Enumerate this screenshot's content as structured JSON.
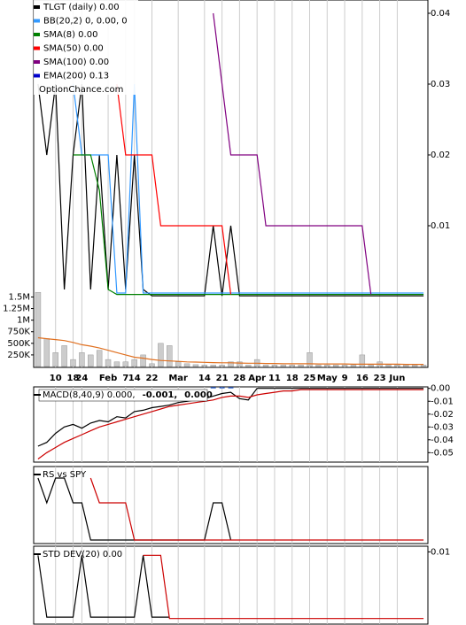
{
  "chart_data": [
    {
      "type": "line",
      "y_axis_side": "right",
      "annotation": "OptionChance.com",
      "ylim": [
        0,
        0.04
      ],
      "yticks": [
        0.01,
        0.02,
        0.03,
        0.04
      ],
      "series": [
        {
          "name": "TLGT (daily) 0.00",
          "color": "#000000",
          "values": [
            0.03,
            0.02,
            0.03,
            0.001,
            0.02,
            0.03,
            0.001,
            0.02,
            0.001,
            0.02,
            0.001,
            0.02,
            0.001,
            0.0001,
            0.0001,
            0.0001,
            0.0001,
            0.0001,
            0.0001,
            0.0001,
            0.01,
            0.0001,
            0.01,
            0.0001,
            0.0001,
            0.0001,
            0.0001,
            0.0001,
            0.0001,
            0.0001,
            0.0001,
            0.0001,
            0.0001,
            0.0001,
            0.0001,
            0.0001,
            0.0001,
            0.0001,
            0.0001,
            0.0001,
            0.0001,
            0.0001,
            0.0001,
            0.0001,
            0.0001
          ]
        },
        {
          "name": "BB(20,2) 0, 0.00, 0",
          "color": "#3399ff",
          "values": [
            null,
            null,
            null,
            null,
            0.03,
            0.02,
            0.02,
            0.02,
            0.02,
            0.0005,
            0.0005,
            0.03,
            0.0005,
            0.0005,
            0.0005,
            0.0005,
            0.0005,
            0.0005,
            0.0005,
            0.0005,
            0.0005,
            0.0005,
            0.0005,
            0.0005,
            0.0005,
            0.0005,
            0.0005,
            0.0005,
            0.0005,
            0.0005,
            0.0005,
            0.0005,
            0.0005,
            0.0005,
            0.0005,
            0.0005,
            0.0005,
            0.0005,
            0.0005,
            0.0005,
            0.0005,
            0.0005,
            0.0005,
            0.0005,
            0.0005
          ]
        },
        {
          "name": "SMA(8) 0.00",
          "color": "#008000",
          "values": [
            null,
            null,
            null,
            null,
            0.02,
            0.02,
            0.02,
            0.015,
            0.001,
            0.0003,
            0.0003,
            0.0003,
            0.0003,
            0.0003,
            0.0003,
            0.0003,
            0.0003,
            0.0003,
            0.0003,
            0.0003,
            0.0003,
            0.0003,
            0.0003,
            0.0003,
            0.0003,
            0.0003,
            0.0003,
            0.0003,
            0.0003,
            0.0003,
            0.0003,
            0.0003,
            0.0003,
            0.0003,
            0.0003,
            0.0003,
            0.0003,
            0.0003,
            0.0003,
            0.0003,
            0.0003,
            0.0003,
            0.0003,
            0.0003,
            0.0003
          ]
        },
        {
          "name": "SMA(50) 0.00",
          "color": "#ff0000",
          "values": [
            null,
            null,
            null,
            null,
            null,
            null,
            null,
            null,
            null,
            0.03,
            0.02,
            0.02,
            0.02,
            0.02,
            0.01,
            0.01,
            0.01,
            0.01,
            0.01,
            0.01,
            0.01,
            0.01,
            0.0003,
            null,
            null,
            null,
            null,
            null,
            null,
            null,
            null,
            null,
            null,
            null,
            null,
            null,
            null,
            null,
            null,
            null,
            null,
            null,
            null,
            null,
            null
          ]
        },
        {
          "name": "SMA(100) 0.00",
          "color": "#800080",
          "values": [
            null,
            null,
            null,
            null,
            null,
            null,
            null,
            null,
            null,
            null,
            null,
            null,
            null,
            null,
            null,
            null,
            null,
            null,
            null,
            null,
            0.04,
            0.03,
            0.02,
            0.02,
            0.02,
            0.02,
            0.01,
            0.01,
            0.01,
            0.01,
            0.01,
            0.01,
            0.01,
            0.01,
            0.01,
            0.01,
            0.01,
            0.01,
            0.0003,
            null,
            null,
            null,
            null,
            null,
            null
          ]
        },
        {
          "name": "EMA(200) 0.13",
          "color": "#0000cc",
          "values": [
            null,
            null,
            null,
            null,
            null,
            null,
            null,
            null,
            null,
            null,
            null,
            null,
            null,
            null,
            null,
            null,
            null,
            null,
            null,
            null,
            null,
            null,
            null,
            null,
            null,
            null,
            null,
            null,
            null,
            null,
            null,
            null,
            null,
            null,
            null,
            null,
            null,
            null,
            null,
            null,
            null,
            null,
            null,
            null,
            null
          ]
        }
      ]
    },
    {
      "type": "bar",
      "y_axis_side": "left",
      "ylim": [
        0,
        1700000
      ],
      "yticks": [
        {
          "value": 250000,
          "label": "250K"
        },
        {
          "value": 500000,
          "label": "500K"
        },
        {
          "value": 750000,
          "label": "750K"
        },
        {
          "value": 1000000,
          "label": "1M"
        },
        {
          "value": 1250000,
          "label": "1.25M"
        },
        {
          "value": 1500000,
          "label": "1.5M"
        }
      ],
      "categories": [
        null,
        null,
        "10",
        null,
        "18",
        "24",
        null,
        null,
        "Feb",
        null,
        "7",
        "14",
        null,
        "22",
        null,
        null,
        "Mar",
        null,
        null,
        "14",
        null,
        "21",
        null,
        "28",
        null,
        "Apr",
        null,
        "11",
        null,
        "18",
        null,
        "25",
        null,
        "May",
        null,
        "9",
        null,
        "16",
        null,
        "23",
        null,
        "Jun",
        null,
        null,
        null
      ],
      "series": [
        {
          "type": "bar",
          "color": "#cccccc",
          "values": [
            1600000,
            600000,
            300000,
            450000,
            150000,
            300000,
            250000,
            350000,
            150000,
            100000,
            100000,
            150000,
            250000,
            60000,
            500000,
            450000,
            100000,
            60000,
            40000,
            30000,
            30000,
            30000,
            100000,
            100000,
            30000,
            150000,
            30000,
            30000,
            30000,
            30000,
            30000,
            300000,
            30000,
            30000,
            30000,
            30000,
            30000,
            250000,
            30000,
            100000,
            30000,
            30000,
            30000,
            30000,
            30000
          ]
        },
        {
          "type": "line",
          "color": "#e07020",
          "values": [
            620000,
            600000,
            580000,
            560000,
            520000,
            470000,
            440000,
            400000,
            350000,
            300000,
            250000,
            200000,
            180000,
            150000,
            130000,
            120000,
            110000,
            100000,
            95000,
            90000,
            85000,
            80000,
            80000,
            75000,
            70000,
            70000,
            65000,
            65000,
            60000,
            60000,
            60000,
            60000,
            55000,
            55000,
            55000,
            55000,
            50000,
            50000,
            50000,
            50000,
            50000,
            50000,
            45000,
            45000,
            45000
          ]
        }
      ]
    },
    {
      "type": "line",
      "y_axis_side": "right",
      "ylim": [
        -0.056,
        0.0012
      ],
      "yticks": [
        {
          "value": 0,
          "label": "0.00"
        },
        -0.01,
        -0.02,
        -0.03,
        -0.04,
        -0.05
      ],
      "series": [
        {
          "name": "MACD(8,40,9) 0.000,",
          "color": "#000000",
          "values": [
            -0.045,
            -0.042,
            -0.035,
            -0.03,
            -0.028,
            -0.031,
            -0.027,
            -0.025,
            -0.026,
            -0.022,
            -0.023,
            -0.018,
            -0.017,
            -0.015,
            -0.014,
            -0.013,
            -0.011,
            -0.01,
            -0.009,
            -0.008,
            -0.006,
            -0.004,
            -0.003,
            -0.008,
            -0.009,
            0,
            0,
            0,
            0,
            0,
            0,
            0,
            0,
            0,
            0,
            0,
            0,
            0,
            0,
            0,
            0,
            0,
            0,
            0,
            0
          ]
        },
        {
          "name": "-0.001,",
          "color": "#cc0000",
          "values": [
            -0.055,
            -0.05,
            -0.046,
            -0.042,
            -0.039,
            -0.036,
            -0.033,
            -0.03,
            -0.028,
            -0.026,
            -0.024,
            -0.022,
            -0.02,
            -0.018,
            -0.016,
            -0.014,
            -0.013,
            -0.012,
            -0.011,
            -0.01,
            -0.009,
            -0.007,
            -0.006,
            -0.006,
            -0.007,
            -0.005,
            -0.004,
            -0.003,
            -0.002,
            -0.002,
            -0.001,
            -0.001,
            -0.001,
            -0.001,
            -0.001,
            -0.001,
            -0.001,
            -0.001,
            -0.001,
            -0.001,
            -0.001,
            -0.001,
            -0.001,
            -0.001,
            -0.001
          ]
        },
        {
          "name": "0.000",
          "type": "bar",
          "color": "#3366cc",
          "values": [
            0,
            0,
            0,
            0,
            0,
            0,
            0,
            0,
            0,
            0,
            0,
            0,
            0,
            0,
            0,
            0,
            0,
            0,
            0,
            0,
            0.001,
            0.001,
            0.001,
            0,
            0,
            0,
            0,
            0,
            0,
            0,
            0,
            0,
            0,
            0,
            0,
            0,
            0,
            0,
            0,
            0,
            0,
            0,
            0,
            0,
            0
          ]
        }
      ]
    },
    {
      "type": "line",
      "title": "RS vs SPY",
      "ylim": [
        0,
        1
      ],
      "series": [
        {
          "color": "#000000",
          "values": [
            1,
            0.6,
            1,
            1,
            0.6,
            0.6,
            0,
            0,
            0,
            0,
            0,
            0,
            0,
            0,
            0,
            0,
            0,
            0,
            0,
            0,
            0.6,
            0.6,
            0,
            null,
            null,
            null,
            null,
            null,
            null,
            null,
            null,
            null,
            null,
            null,
            null,
            null,
            null,
            null,
            null,
            null,
            null,
            null,
            null,
            null,
            null
          ]
        },
        {
          "color": "#cc0000",
          "values": [
            null,
            null,
            null,
            null,
            null,
            null,
            1,
            0.6,
            0.6,
            0.6,
            0.6,
            0,
            0,
            0,
            0,
            0,
            0,
            0,
            0,
            0,
            0,
            0,
            0,
            0,
            0,
            0,
            0,
            0,
            0,
            0,
            0,
            0,
            0,
            0,
            0,
            0,
            0,
            0,
            0,
            0,
            0,
            0,
            0,
            0,
            0
          ]
        }
      ]
    },
    {
      "type": "line",
      "title": "STD DEV(20) 0.00",
      "y_axis_side": "right",
      "ylim": [
        0,
        0.0105
      ],
      "yticks": [
        0.01
      ],
      "series": [
        {
          "color": "#000000",
          "values": [
            0.0095,
            0.0005,
            0.0005,
            0.0005,
            0.0005,
            0.0095,
            0.0005,
            0.0005,
            0.0005,
            0.0005,
            0.0005,
            0.0005,
            0.0095,
            0.0005,
            0.0005,
            0.0005,
            null,
            null,
            null,
            null,
            null,
            null,
            null,
            null,
            null,
            null,
            null,
            null,
            null,
            null,
            null,
            null,
            null,
            null,
            null,
            null,
            null,
            null,
            null,
            null,
            null,
            null,
            null,
            null,
            null
          ]
        },
        {
          "color": "#cc0000",
          "values": [
            null,
            null,
            null,
            null,
            null,
            null,
            null,
            null,
            null,
            null,
            null,
            null,
            0.0095,
            0.0095,
            0.0095,
            0.0003,
            0.0003,
            0.0003,
            0.0003,
            0.0003,
            0.0003,
            0.0003,
            0.0003,
            0.0003,
            0.0003,
            0.0003,
            0.0003,
            0.0003,
            0.0003,
            0.0003,
            0.0003,
            0.0003,
            0.0003,
            0.0003,
            0.0003,
            0.0003,
            0.0003,
            0.0003,
            0.0003,
            0.0003,
            0.0003,
            0.0003,
            0.0003,
            0.0003,
            0.0003
          ]
        }
      ]
    }
  ]
}
